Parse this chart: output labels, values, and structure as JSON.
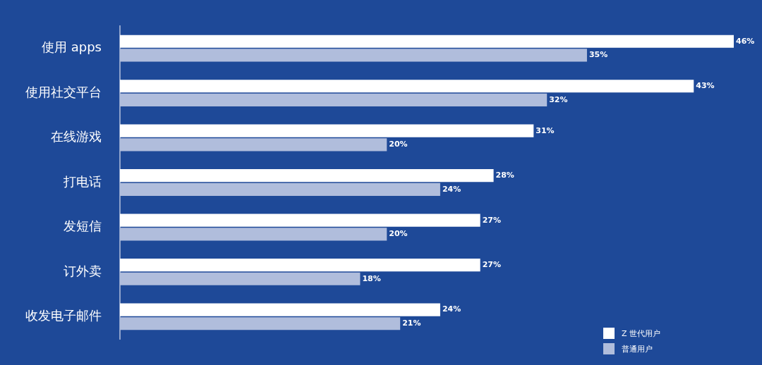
{
  "chart_data": {
    "type": "bar",
    "orientation": "horizontal",
    "categories": [
      "使用 apps",
      "使用社交平台",
      "在线游戏",
      "打电话",
      "发短信",
      "订外卖",
      "收发电子邮件"
    ],
    "series": [
      {
        "name": "Z 世代用户",
        "color": "#ffffff",
        "values": [
          46,
          43,
          31,
          28,
          27,
          27,
          24
        ],
        "value_labels": [
          "46%",
          "43%",
          "31%",
          "28%",
          "27%",
          "27%",
          "24%"
        ]
      },
      {
        "name": "普通用户",
        "color": "#b0bddc",
        "values": [
          35,
          32,
          20,
          24,
          20,
          18,
          21
        ],
        "value_labels": [
          "35%",
          "32%",
          "20%",
          "24%",
          "20%",
          "18%",
          "21%"
        ]
      }
    ],
    "xlim": [
      0,
      46
    ],
    "grid": false,
    "legend": "bottom right",
    "tick_labels": "y"
  }
}
